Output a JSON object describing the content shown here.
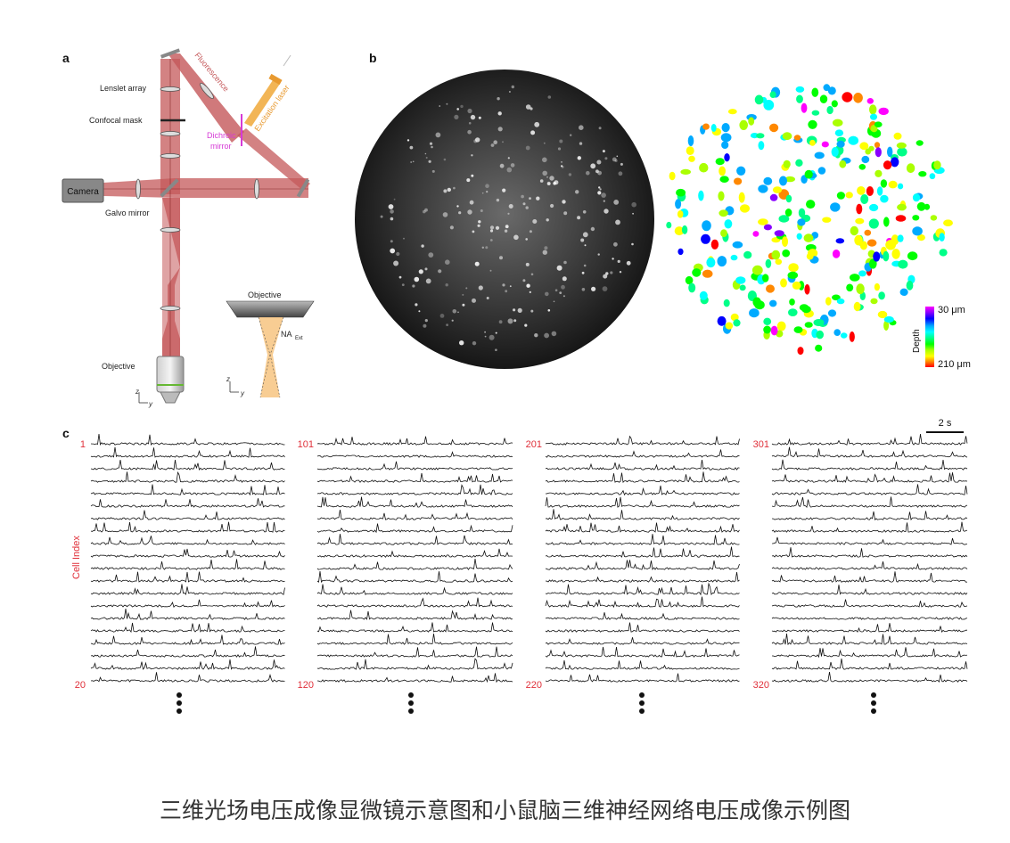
{
  "panel_labels": {
    "a": "a",
    "b": "b",
    "c": "c"
  },
  "panel_a": {
    "labels": {
      "lenslet_array": "Lenslet array",
      "confocal_mask": "Confocal mask",
      "camera": "Camera",
      "galvo_mirror": "Galvo mirror",
      "objective_main": "Objective",
      "fluorescence": "Fluorescence",
      "excitation_laser": "Excitation laser",
      "dichroic_line1": "Dichroic",
      "dichroic_line2": "mirror",
      "objective_inset": "Objective",
      "na": "NA",
      "na_sub": "Ext",
      "axis_z": "z",
      "axis_y": "y"
    },
    "colors": {
      "beam": "#c4585a",
      "beam_light": "#e9a8a8",
      "laser": "#f0a838",
      "dichroic": "#d63ad6"
    }
  },
  "panel_b": {
    "depth_label": "Depth",
    "depth_top": "30 μm",
    "depth_bottom": "210 μm",
    "colormap": [
      "#ff00ff",
      "#8800ff",
      "#0000ff",
      "#00aaff",
      "#00ffff",
      "#00ff88",
      "#00ff00",
      "#aaff00",
      "#ffff00",
      "#ff8800",
      "#ff0000"
    ]
  },
  "panel_c": {
    "y_axis_label": "Cell Index",
    "scale_bar": "2 s",
    "groups": [
      {
        "start": "1",
        "end": "20"
      },
      {
        "start": "101",
        "end": "120"
      },
      {
        "start": "201",
        "end": "220"
      },
      {
        "start": "301",
        "end": "320"
      }
    ],
    "traces_per_group": 20,
    "index_color": "#e0303a"
  },
  "caption": "三维光场电压成像显微镜示意图和小鼠脑三维神经网络电压成像示例图"
}
